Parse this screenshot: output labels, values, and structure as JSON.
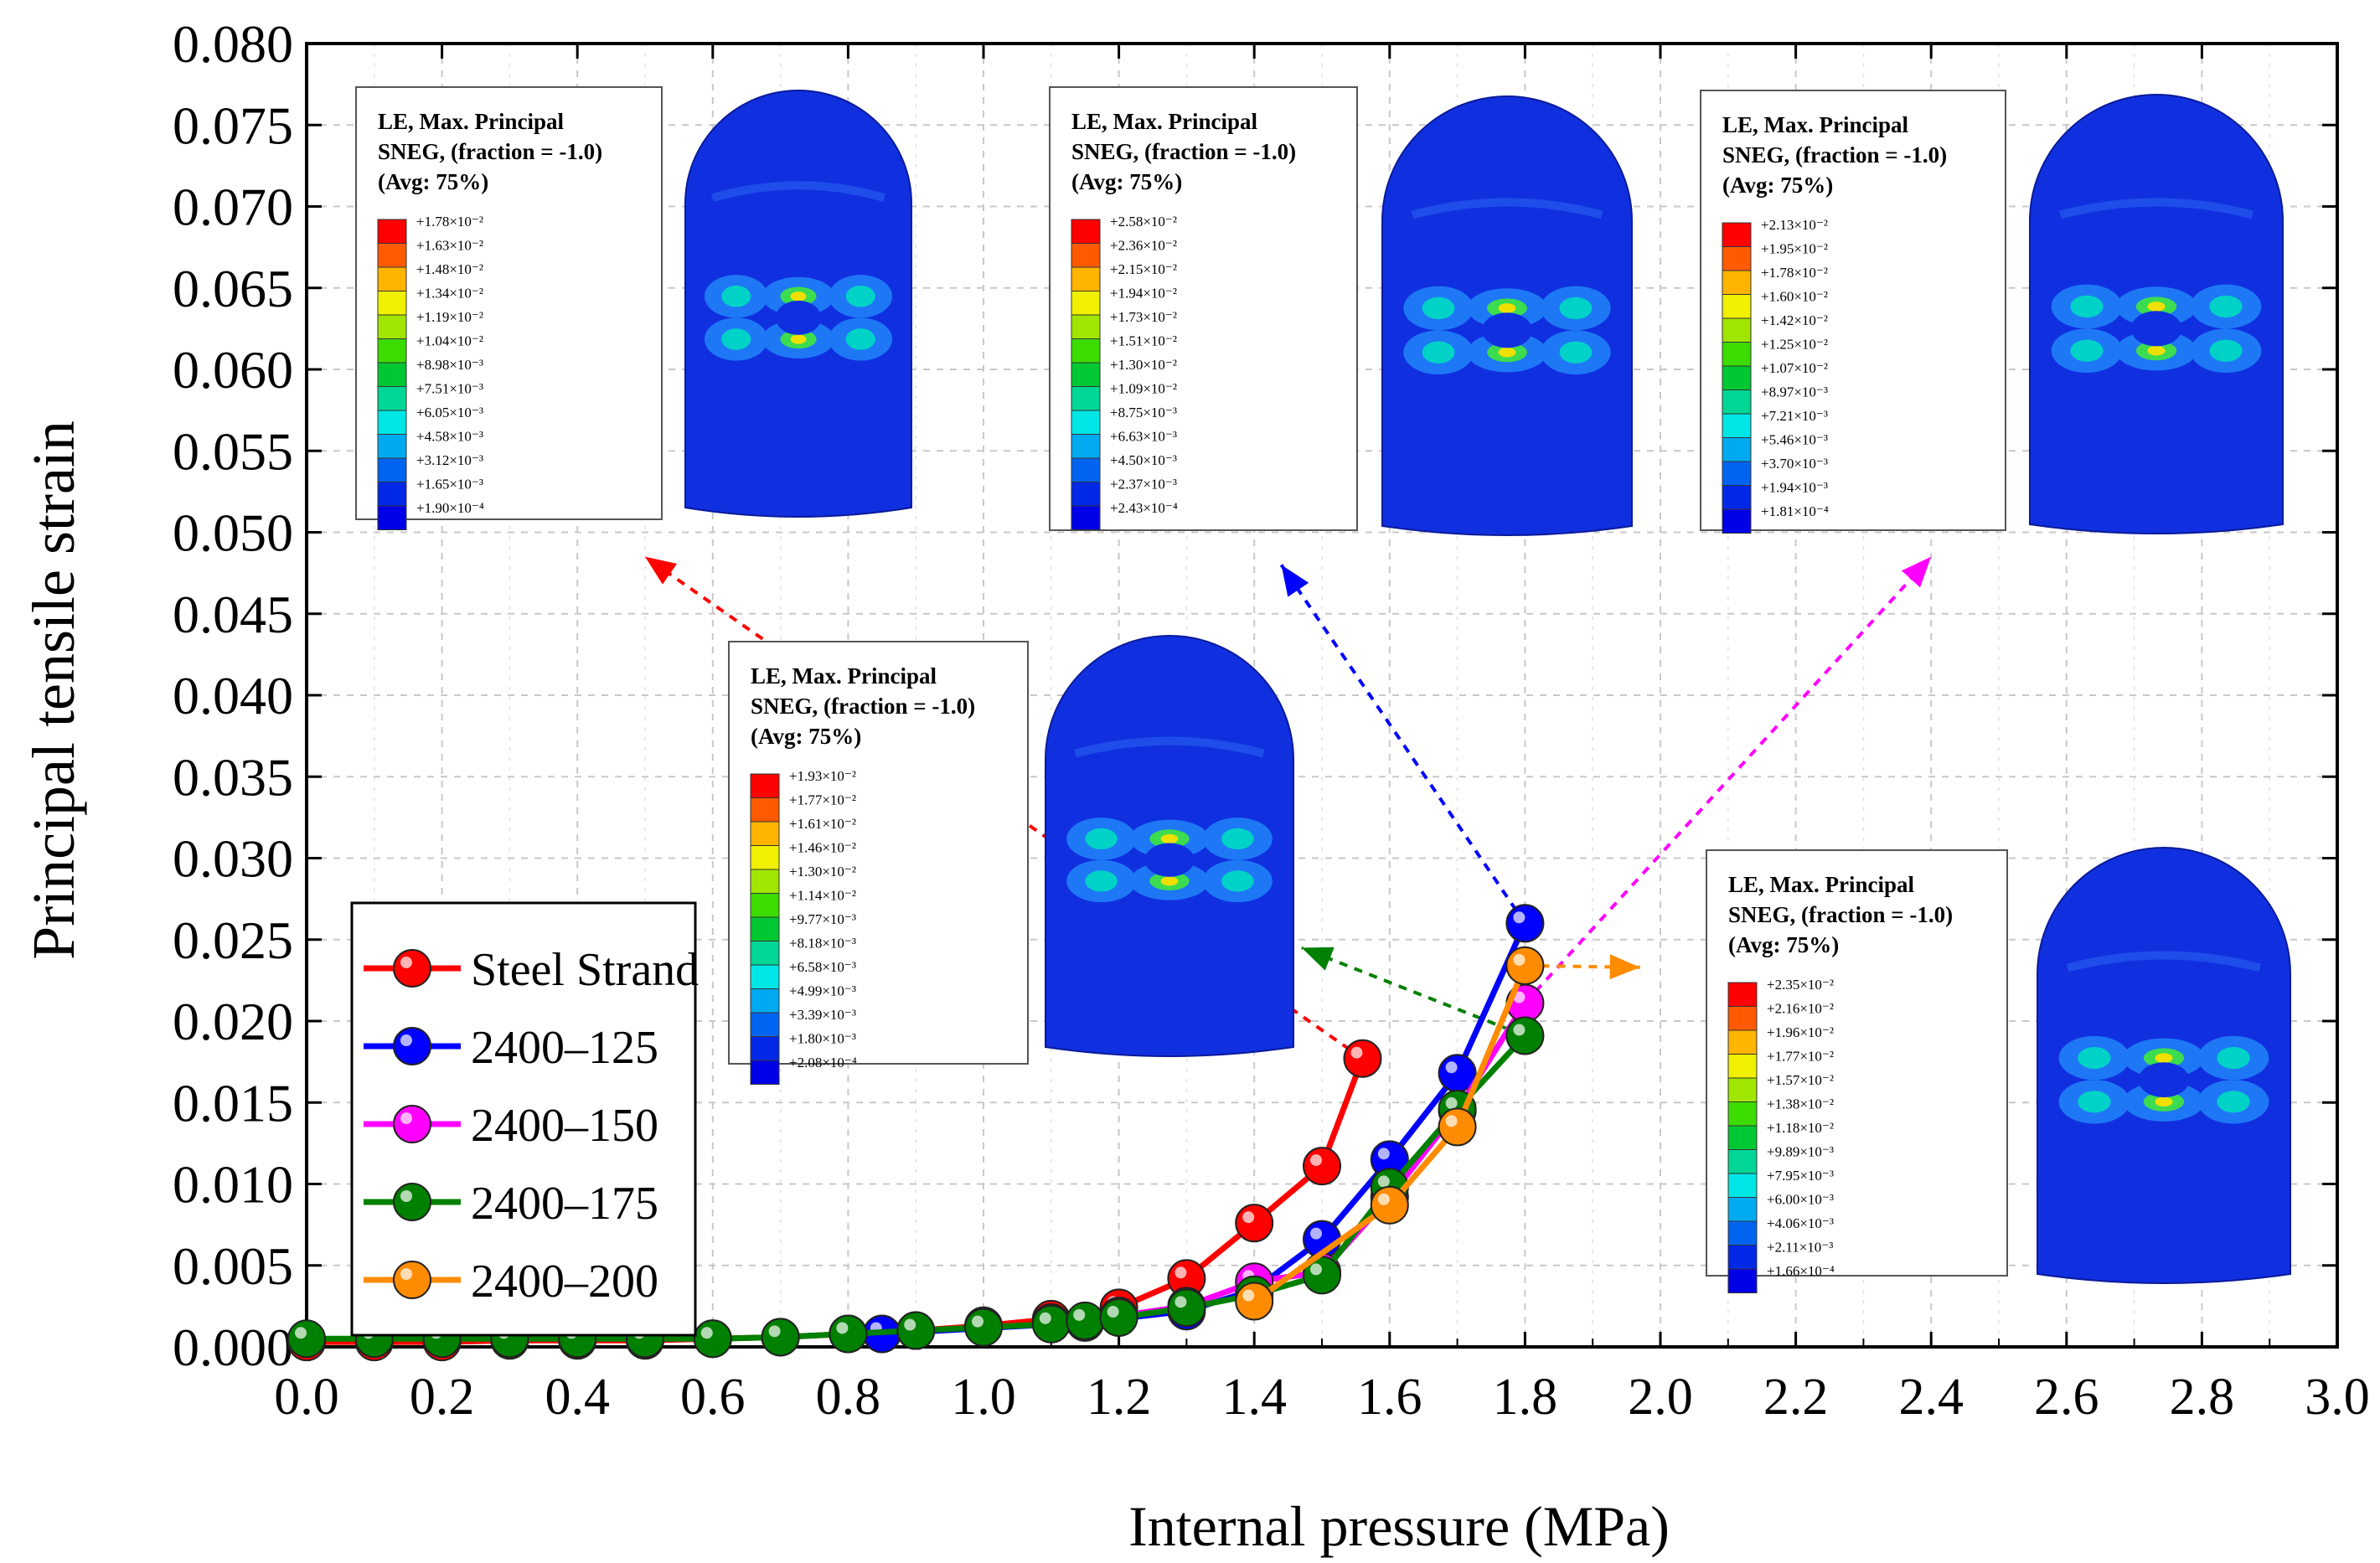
{
  "chart_data": {
    "type": "line",
    "title": "",
    "xlabel": "Internal pressure (MPa)",
    "ylabel": "Principal tensile strain",
    "xlim": [
      0.0,
      3.0
    ],
    "ylim": [
      0.0,
      0.08
    ],
    "x_ticks": [
      "0.0",
      "0.2",
      "0.4",
      "0.6",
      "0.8",
      "1.0",
      "1.2",
      "1.4",
      "1.6",
      "1.8",
      "2.0",
      "2.2",
      "2.4",
      "2.6",
      "2.8",
      "3.0"
    ],
    "y_ticks": [
      "0.000",
      "0.005",
      "0.010",
      "0.015",
      "0.020",
      "0.025",
      "0.030",
      "0.035",
      "0.040",
      "0.045",
      "0.050",
      "0.055",
      "0.060",
      "0.065",
      "0.070",
      "0.075",
      "0.080"
    ],
    "grid": true,
    "legend_position": "bottom-left",
    "series": [
      {
        "name": "Steel Strand",
        "color": "#ff0000",
        "x": [
          0,
          0.1,
          0.2,
          0.3,
          0.4,
          0.5,
          0.6,
          0.7,
          0.8,
          0.9,
          1.0,
          1.1,
          1.2,
          1.3,
          1.4,
          1.5,
          1.56
        ],
        "y": [
          0.0003,
          0.0003,
          0.0003,
          0.0004,
          0.0004,
          0.0004,
          0.0005,
          0.0006,
          0.0008,
          0.001,
          0.0013,
          0.0017,
          0.0024,
          0.0042,
          0.0076,
          0.0111,
          0.0177
        ]
      },
      {
        "name": "2400–125",
        "color": "#0000ff",
        "x": [
          0.85,
          1.15,
          1.3,
          1.4,
          1.5,
          1.6,
          1.7,
          1.8
        ],
        "y": [
          0.0008,
          0.0015,
          0.0022,
          0.0035,
          0.0066,
          0.0115,
          0.0168,
          0.026
        ]
      },
      {
        "name": "2400–150",
        "color": "#ff00ff",
        "x": [
          1.1,
          1.2,
          1.3,
          1.4,
          1.5,
          1.6,
          1.7,
          1.8
        ],
        "y": [
          0.0015,
          0.0019,
          0.0025,
          0.004,
          0.0046,
          0.0092,
          0.0145,
          0.0211
        ]
      },
      {
        "name": "2400–175",
        "color": "#008000",
        "x": [
          0,
          0.1,
          0.2,
          0.3,
          0.4,
          0.5,
          0.6,
          0.7,
          0.8,
          0.9,
          1.0,
          1.1,
          1.15,
          1.2,
          1.3,
          1.4,
          1.5,
          1.6,
          1.7,
          1.8
        ],
        "y": [
          0.0005,
          0.0005,
          0.0005,
          0.0005,
          0.0005,
          0.0005,
          0.0005,
          0.0006,
          0.0008,
          0.001,
          0.0012,
          0.0014,
          0.0016,
          0.0018,
          0.0024,
          0.0032,
          0.0044,
          0.0098,
          0.0146,
          0.0191
        ]
      },
      {
        "name": "2400–200",
        "color": "#ff8c00",
        "x": [
          1.4,
          1.6,
          1.7,
          1.8
        ],
        "y": [
          0.0028,
          0.0087,
          0.0135,
          0.0234
        ]
      }
    ],
    "contour_legends": [
      {
        "header": [
          "LE, Max. Principal",
          "SNEG, (fraction = -1.0)",
          "(Avg: 75%)"
        ],
        "values": [
          "+1.78×10⁻²",
          "+1.63×10⁻²",
          "+1.48×10⁻²",
          "+1.34×10⁻²",
          "+1.19×10⁻²",
          "+1.04×10⁻²",
          "+8.98×10⁻³",
          "+7.51×10⁻³",
          "+6.05×10⁻³",
          "+4.58×10⁻³",
          "+3.12×10⁻³",
          "+1.65×10⁻³",
          "+1.90×10⁻⁴"
        ]
      },
      {
        "header": [
          "LE, Max. Principal",
          "SNEG, (fraction = -1.0)",
          "(Avg: 75%)"
        ],
        "values": [
          "+2.58×10⁻²",
          "+2.36×10⁻²",
          "+2.15×10⁻²",
          "+1.94×10⁻²",
          "+1.73×10⁻²",
          "+1.51×10⁻²",
          "+1.30×10⁻²",
          "+1.09×10⁻²",
          "+8.75×10⁻³",
          "+6.63×10⁻³",
          "+4.50×10⁻³",
          "+2.37×10⁻³",
          "+2.43×10⁻⁴"
        ]
      },
      {
        "header": [
          "LE, Max. Principal",
          "SNEG, (fraction = -1.0)",
          "(Avg: 75%)"
        ],
        "values": [
          "+2.13×10⁻²",
          "+1.95×10⁻²",
          "+1.78×10⁻²",
          "+1.60×10⁻²",
          "+1.42×10⁻²",
          "+1.25×10⁻²",
          "+1.07×10⁻²",
          "+8.97×10⁻³",
          "+7.21×10⁻³",
          "+5.46×10⁻³",
          "+3.70×10⁻³",
          "+1.94×10⁻³",
          "+1.81×10⁻⁴"
        ]
      },
      {
        "header": [
          "LE, Max. Principal",
          "SNEG, (fraction = -1.0)",
          "(Avg: 75%)"
        ],
        "values": [
          "+1.93×10⁻²",
          "+1.77×10⁻²",
          "+1.61×10⁻²",
          "+1.46×10⁻²",
          "+1.30×10⁻²",
          "+1.14×10⁻²",
          "+9.77×10⁻³",
          "+8.18×10⁻³",
          "+6.58×10⁻³",
          "+4.99×10⁻³",
          "+3.39×10⁻³",
          "+1.80×10⁻³",
          "+2.08×10⁻⁴"
        ]
      },
      {
        "header": [
          "LE, Max. Principal",
          "SNEG, (fraction = -1.0)",
          "(Avg: 75%)"
        ],
        "values": [
          "+2.35×10⁻²",
          "+2.16×10⁻²",
          "+1.96×10⁻²",
          "+1.77×10⁻²",
          "+1.57×10⁻²",
          "+1.38×10⁻²",
          "+1.18×10⁻²",
          "+9.89×10⁻³",
          "+7.95×10⁻³",
          "+6.00×10⁻³",
          "+4.06×10⁻³",
          "+2.11×10⁻³",
          "+1.66×10⁻⁴"
        ]
      }
    ],
    "contour_colors": [
      "#ff0000",
      "#ff5a00",
      "#ffb400",
      "#f0f000",
      "#a0e600",
      "#3cdc00",
      "#00c832",
      "#00d796",
      "#00e6e6",
      "#00aaf0",
      "#0064f0",
      "#0028e6",
      "#0000e6"
    ]
  }
}
